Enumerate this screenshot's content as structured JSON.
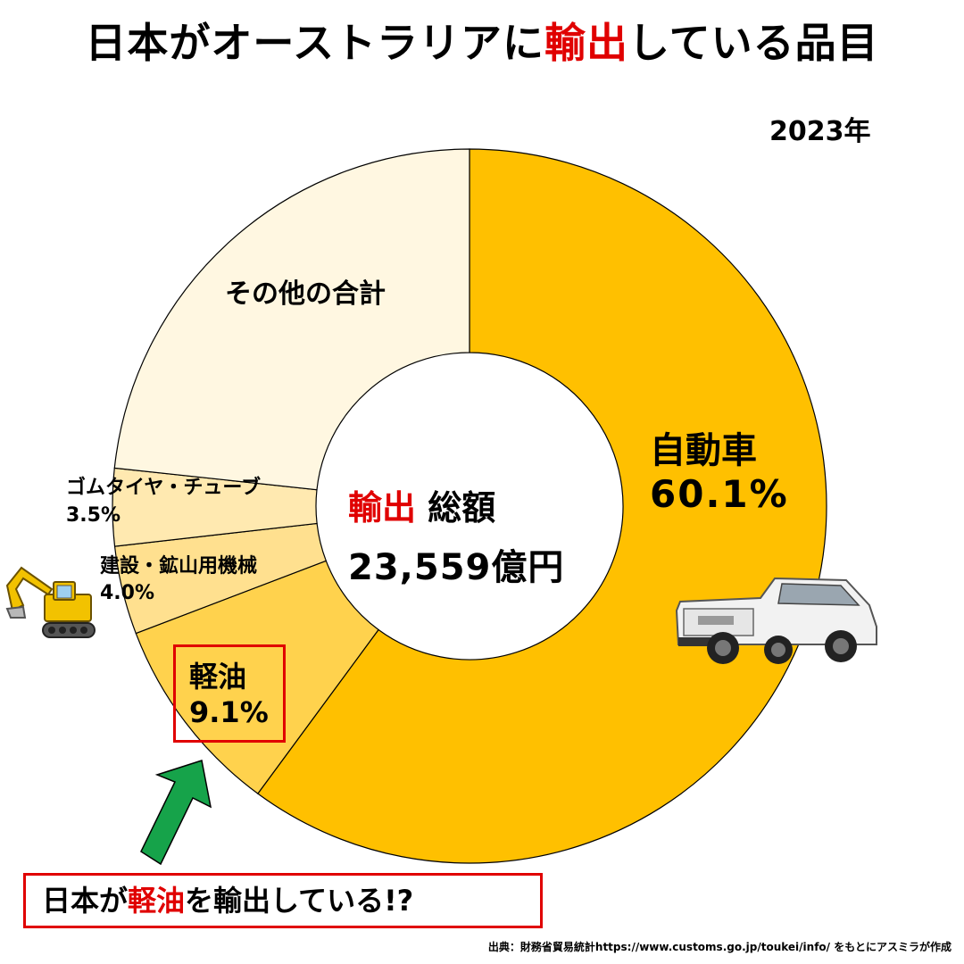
{
  "title": {
    "prefix": "日本がオーストラリアに",
    "highlight": "輸出",
    "suffix": "している品目"
  },
  "year": "2023年",
  "chart_data": {
    "type": "pie",
    "donut": true,
    "start": "top",
    "direction": "clockwise",
    "slices": [
      {
        "label": "自動車",
        "value": 60.1,
        "value_label": "60.1%",
        "color": "#FFC000"
      },
      {
        "label": "軽油",
        "value": 9.1,
        "value_label": "9.1%",
        "color": "#FFD24D"
      },
      {
        "label": "建設・鉱山用機械",
        "value": 4.0,
        "value_label": "4.0%",
        "color": "#FFE08F"
      },
      {
        "label": "ゴムタイヤ・チューブ",
        "value": 3.5,
        "value_label": "3.5%",
        "color": "#FFE9B0"
      },
      {
        "label": "その他の合計",
        "value": 23.3,
        "value_label": "",
        "color": "#FFF7E1"
      }
    ],
    "center_label_prefix": "輸出",
    "center_label_suffix": "総額",
    "center_value": "23,559億円"
  },
  "callout": {
    "prefix": "日本が",
    "highlight": "軽油",
    "suffix": "を輸出している!?"
  },
  "source": "出典：財務省貿易統計https://www.customs.go.jp/toukei/info/ をもとにアスミラが作成",
  "icons": {
    "truck": "pickup-truck-icon",
    "excavator": "excavator-icon",
    "arrow": "green-arrow-icon"
  },
  "colors": {
    "accent_red": "#e00000",
    "arrow_green": "#16a34a"
  }
}
